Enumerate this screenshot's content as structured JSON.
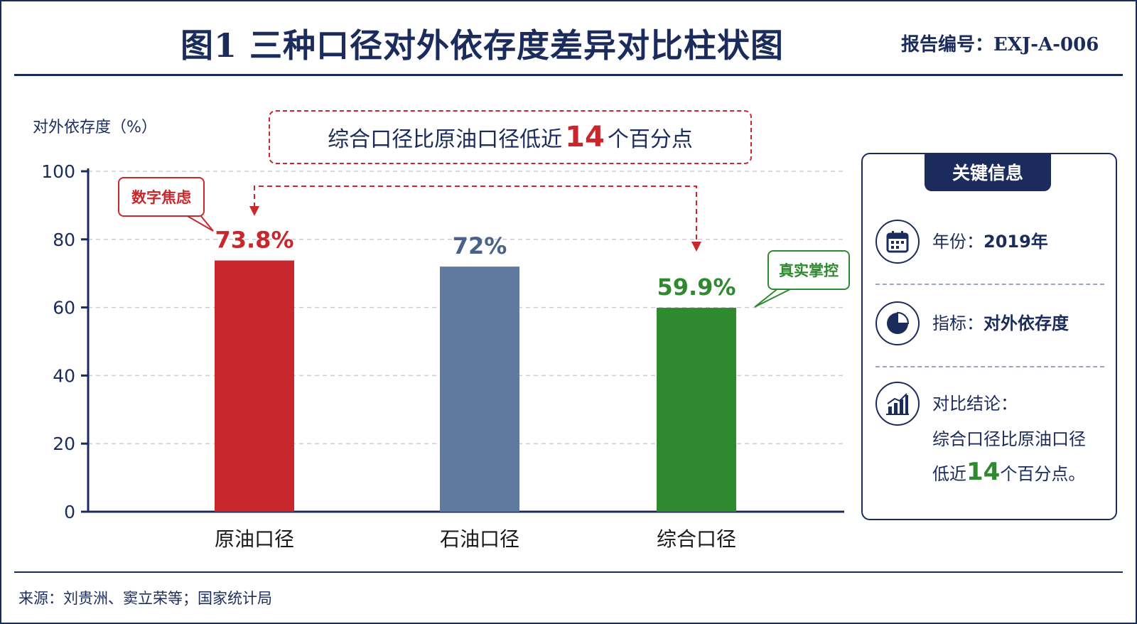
{
  "header": {
    "title": "图1 三种口径对外依存度差异对比柱状图",
    "report_number": "报告编号：EXJ-A-006"
  },
  "callout": {
    "prefix": "综合口径比原油口径低近",
    "highlight": "14",
    "suffix": "个百分点"
  },
  "bubbles": {
    "left": "数字焦虑",
    "right": "真实掌控"
  },
  "info_panel": {
    "title": "关键信息",
    "year_label": "年份：",
    "year_value": "2019年",
    "indicator_label": "指标：",
    "indicator_value": "对外依存度",
    "conclusion_label": "对比结论：",
    "conclusion_line1": "综合口径比原油口径",
    "conclusion_line2_prefix": "低近",
    "conclusion_highlight": "14",
    "conclusion_line2_suffix": "个百分点。"
  },
  "source": "来源：刘贵洲、窦立荣等；国家统计局",
  "colors": {
    "navy": "#1b2c5c",
    "red": "#c8272c",
    "slate_blue": "#60799f",
    "green": "#2f8a2f"
  },
  "icons": {
    "year": "calendar-icon",
    "indicator": "pie-chart-icon",
    "conclusion": "bar-chart-icon"
  },
  "chart_data": {
    "type": "bar",
    "ylabel": "对外依存度（%）",
    "xlabel": "",
    "ylim": [
      0,
      100
    ],
    "yticks": [
      0,
      20,
      40,
      60,
      80,
      100
    ],
    "grid": true,
    "categories": [
      "原油口径",
      "石油口径",
      "综合口径"
    ],
    "values": [
      73.8,
      72,
      59.9
    ],
    "data_labels": [
      "73.8%",
      "72%",
      "59.9%"
    ],
    "bar_colors": [
      "#c8272c",
      "#60799f",
      "#2f8a2f"
    ],
    "label_colors": [
      "#c8272c",
      "#4a628a",
      "#2f8a2f"
    ]
  }
}
